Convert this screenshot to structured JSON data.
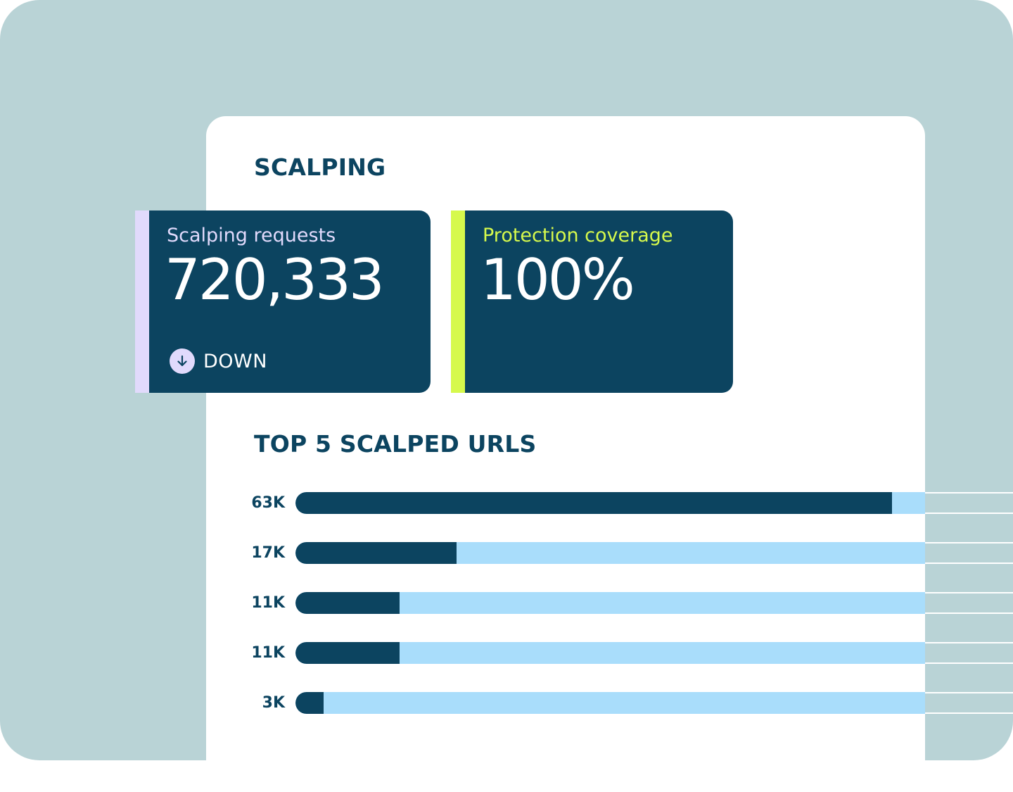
{
  "section_title": "SCALPING",
  "cards": [
    {
      "label": "Scalping requests",
      "value": "720,333",
      "trend": {
        "label": "DOWN",
        "icon": "arrow-down-circle-icon"
      },
      "accent_color": "#e1dafc"
    },
    {
      "label": "Protection coverage",
      "value": "100%",
      "accent_color": "#d6f94c"
    }
  ],
  "chart_data": {
    "type": "bar",
    "orientation": "horizontal",
    "title": "TOP 5 SCALPED URLS",
    "categories": [
      "63K",
      "17K",
      "11K",
      "11K",
      "3K"
    ],
    "values": [
      63,
      17,
      11,
      11,
      3
    ],
    "xlim": [
      0,
      66.5
    ],
    "colors": {
      "bar": "#0c4460",
      "track": "#a9ddfb"
    },
    "grid": false
  },
  "colors": {
    "background": "#b9d3d6",
    "panel": "#ffffff",
    "primary": "#0c4460"
  }
}
